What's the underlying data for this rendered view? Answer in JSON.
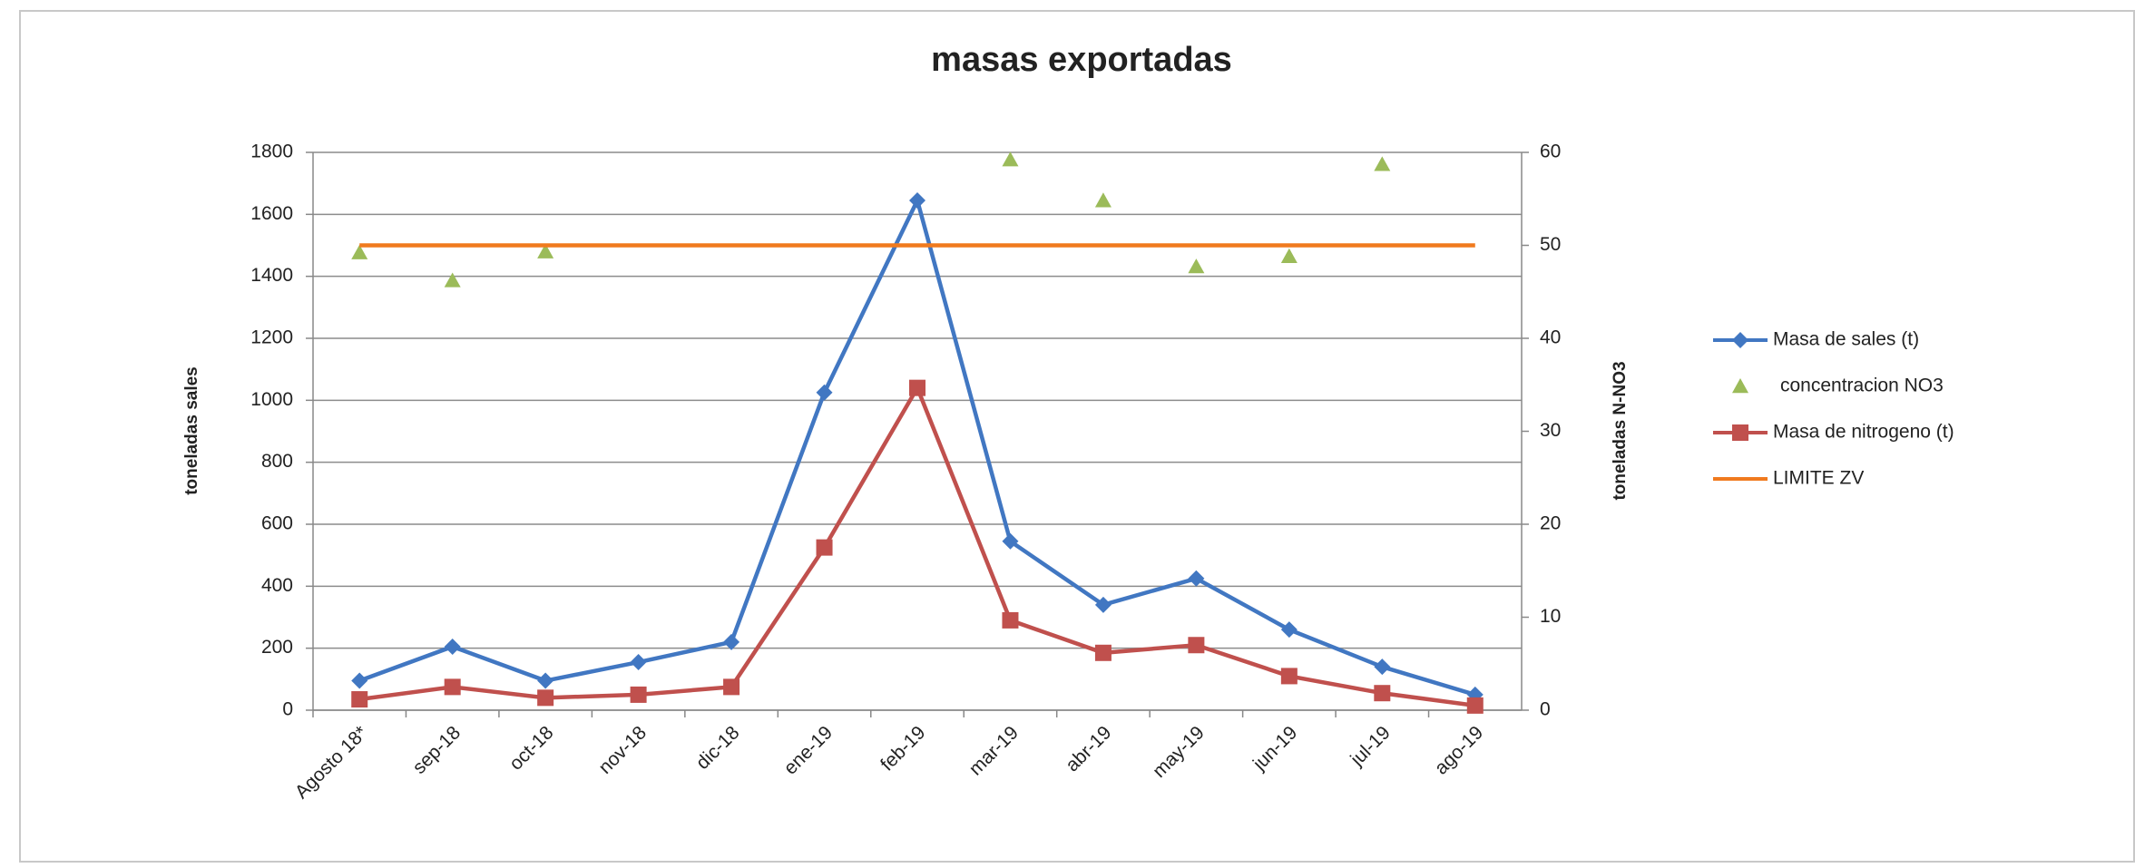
{
  "chart_data": {
    "type": "line",
    "title": "masas exportadas",
    "y_label": "toneladas sales",
    "y2_label": "toneladas N-NO3",
    "categories": [
      "Agosto 18*",
      "sep-18",
      "oct-18",
      "nov-18",
      "dic-18",
      "ene-19",
      "feb-19",
      "mar-19",
      "abr-19",
      "may-19",
      "jun-19",
      "jul-19",
      "ago-19"
    ],
    "ylim": [
      0,
      1800
    ],
    "yticks": [
      0,
      200,
      400,
      600,
      800,
      1000,
      1200,
      1400,
      1600,
      1800
    ],
    "y2lim": [
      0,
      60
    ],
    "y2ticks": [
      0,
      10,
      20,
      30,
      40,
      50,
      60
    ],
    "grid": true,
    "legend": "right",
    "series": [
      {
        "name": "Masa de sales (t)",
        "color": "#4177c2",
        "marker": "diamond",
        "line": true,
        "values": [
          95,
          205,
          95,
          155,
          220,
          1025,
          1645,
          545,
          340,
          425,
          260,
          140,
          50
        ]
      },
      {
        "name": "concentracion NO3",
        "color": "#9bbb59",
        "marker": "triangle",
        "line": false,
        "axis": "y2",
        "values": [
          49.2,
          46.2,
          49.3,
          null,
          null,
          null,
          null,
          59.2,
          54.8,
          47.7,
          48.8,
          58.7,
          null
        ]
      },
      {
        "name": "Masa de nitrogeno (t)",
        "color": "#c0504d",
        "marker": "square",
        "line": true,
        "values": [
          35,
          75,
          40,
          50,
          75,
          525,
          1040,
          290,
          185,
          210,
          110,
          55,
          15
        ]
      },
      {
        "name": "LIMITE ZV",
        "color": "#f07a1e",
        "marker": "none",
        "line": true,
        "axis": "y2",
        "values": [
          50,
          50,
          50,
          50,
          50,
          50,
          50,
          50,
          50,
          50,
          50,
          50,
          50
        ]
      }
    ]
  }
}
